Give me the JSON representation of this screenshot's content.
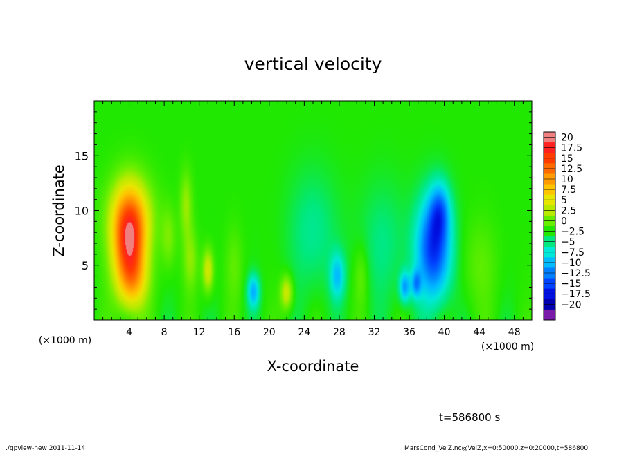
{
  "chart_data": {
    "type": "heatmap",
    "title": "vertical velocity",
    "xlabel": "X-coordinate",
    "ylabel": "Z-coordinate",
    "x_unit_left": "(×1000 m)",
    "x_unit_right": "(×1000 m)",
    "xlim": [
      0,
      50
    ],
    "ylim": [
      0,
      20
    ],
    "x_ticks": [
      4,
      8,
      12,
      16,
      20,
      24,
      28,
      32,
      36,
      40,
      44,
      48
    ],
    "x_tick_labels": [
      "4",
      "8",
      "12",
      "16",
      "20",
      "24",
      "28",
      "32",
      "36",
      "40",
      "44",
      "48"
    ],
    "y_ticks": [
      5,
      10,
      15
    ],
    "y_tick_labels": [
      "5",
      "10",
      "15"
    ],
    "colorbar": {
      "levels": [
        20,
        17.5,
        15,
        12.5,
        10,
        7.5,
        5,
        2.5,
        0,
        -2.5,
        -5,
        -7.5,
        -10,
        -12.5,
        -15,
        -17.5,
        -20
      ],
      "labels": [
        "20",
        "17.5",
        "15",
        "12.5",
        "10",
        "7.5",
        "5",
        "2.5",
        "0",
        "−2.5",
        "−5",
        "−7.5",
        "−10",
        "−12.5",
        "−15",
        "−17.5",
        "−20"
      ],
      "colors": [
        "#f08080",
        "#ff2020",
        "#ff3c00",
        "#ff6a00",
        "#ff9a00",
        "#ffc400",
        "#e6e600",
        "#b8ea00",
        "#66ee00",
        "#20e800",
        "#00e880",
        "#00e8d8",
        "#00bcff",
        "#0080ff",
        "#0044ff",
        "#0010e0",
        "#0000b0",
        "#7a1aa8"
      ]
    },
    "features": [
      {
        "x": 4.0,
        "z": 6.8,
        "w": 16.5,
        "sx": 1.3,
        "sz": 3.2
      },
      {
        "x": 4.2,
        "z": 9.5,
        "w": 7.0,
        "sx": 1.8,
        "sz": 2.5
      },
      {
        "x": 4.5,
        "z": 3.5,
        "w": 5.0,
        "sx": 1.2,
        "sz": 1.8
      },
      {
        "x": 13.0,
        "z": 4.5,
        "w": 6.5,
        "sx": 0.45,
        "sz": 1.4
      },
      {
        "x": 10.5,
        "z": 10.5,
        "w": 4.0,
        "sx": 0.5,
        "sz": 2.2
      },
      {
        "x": 11.0,
        "z": 5.5,
        "w": 3.5,
        "sx": 0.6,
        "sz": 2.0
      },
      {
        "x": 8.5,
        "z": 7.5,
        "w": 3.0,
        "sx": 0.6,
        "sz": 2.0
      },
      {
        "x": 22.0,
        "z": 2.5,
        "w": 6.5,
        "sx": 0.5,
        "sz": 1.1
      },
      {
        "x": 18.2,
        "z": 2.6,
        "w": -7.5,
        "sx": 0.5,
        "sz": 1.1
      },
      {
        "x": 27.8,
        "z": 4.0,
        "w": -6.5,
        "sx": 0.6,
        "sz": 1.5
      },
      {
        "x": 25.0,
        "z": 8.0,
        "w": -3.0,
        "sx": 2.0,
        "sz": 4.0
      },
      {
        "x": 38.8,
        "z": 6.5,
        "w": -13.5,
        "sx": 1.4,
        "sz": 3.3
      },
      {
        "x": 39.5,
        "z": 10.0,
        "w": -7.0,
        "sx": 0.8,
        "sz": 1.8
      },
      {
        "x": 35.5,
        "z": 3.0,
        "w": -8.0,
        "sx": 0.45,
        "sz": 1.0
      },
      {
        "x": 36.8,
        "z": 3.3,
        "w": -7.0,
        "sx": 0.4,
        "sz": 0.9
      },
      {
        "x": 33.0,
        "z": 7.0,
        "w": -2.5,
        "sx": 2.0,
        "sz": 4.0
      },
      {
        "x": 44.0,
        "z": 5.0,
        "w": 2.0,
        "sx": 1.5,
        "sz": 3.0
      },
      {
        "x": 30.5,
        "z": 4.0,
        "w": 2.5,
        "sx": 0.6,
        "sz": 2.0
      },
      {
        "x": 16.0,
        "z": 5.0,
        "w": 2.0,
        "sx": 0.7,
        "sz": 2.5
      }
    ]
  },
  "time_label": "t=586800 s",
  "footer": {
    "left": "./gpview-new  2011-11-14",
    "right": "MarsCond_VelZ.nc@VelZ,x=0:50000,z=0:20000,t=586800"
  }
}
